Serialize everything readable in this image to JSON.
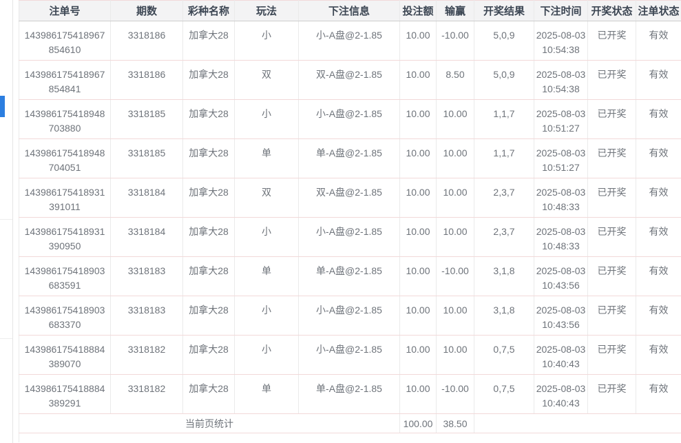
{
  "accent": {
    "scrollbar_thumb_color": "#2c7ee0"
  },
  "table": {
    "columns": [
      {
        "key": "bet_id",
        "label": "注单号"
      },
      {
        "key": "period",
        "label": "期数"
      },
      {
        "key": "lottery",
        "label": "彩种名称"
      },
      {
        "key": "play",
        "label": "玩法"
      },
      {
        "key": "bet_info",
        "label": "下注信息"
      },
      {
        "key": "amount",
        "label": "投注额"
      },
      {
        "key": "win_loss",
        "label": "输赢"
      },
      {
        "key": "result",
        "label": "开奖结果"
      },
      {
        "key": "bet_time",
        "label": "下注时间"
      },
      {
        "key": "draw_status",
        "label": "开奖状态"
      },
      {
        "key": "bet_status",
        "label": "注单状态"
      }
    ],
    "rows": [
      [
        "143986175418967854610",
        "3318186",
        "加拿大28",
        "小",
        "小-A盘@2-1.85",
        "10.00",
        "-10.00",
        "5,0,9",
        "2025-08-03 10:54:38",
        "已开奖",
        "有效"
      ],
      [
        "143986175418967854841",
        "3318186",
        "加拿大28",
        "双",
        "双-A盘@2-1.85",
        "10.00",
        "8.50",
        "5,0,9",
        "2025-08-03 10:54:38",
        "已开奖",
        "有效"
      ],
      [
        "143986175418948703880",
        "3318185",
        "加拿大28",
        "小",
        "小-A盘@2-1.85",
        "10.00",
        "10.00",
        "1,1,7",
        "2025-08-03 10:51:27",
        "已开奖",
        "有效"
      ],
      [
        "143986175418948704051",
        "3318185",
        "加拿大28",
        "单",
        "单-A盘@2-1.85",
        "10.00",
        "10.00",
        "1,1,7",
        "2025-08-03 10:51:27",
        "已开奖",
        "有效"
      ],
      [
        "143986175418931391011",
        "3318184",
        "加拿大28",
        "双",
        "双-A盘@2-1.85",
        "10.00",
        "10.00",
        "2,3,7",
        "2025-08-03 10:48:33",
        "已开奖",
        "有效"
      ],
      [
        "143986175418931390950",
        "3318184",
        "加拿大28",
        "小",
        "小-A盘@2-1.85",
        "10.00",
        "10.00",
        "2,3,7",
        "2025-08-03 10:48:33",
        "已开奖",
        "有效"
      ],
      [
        "143986175418903683591",
        "3318183",
        "加拿大28",
        "单",
        "单-A盘@2-1.85",
        "10.00",
        "-10.00",
        "3,1,8",
        "2025-08-03 10:43:56",
        "已开奖",
        "有效"
      ],
      [
        "143986175418903683370",
        "3318183",
        "加拿大28",
        "小",
        "小-A盘@2-1.85",
        "10.00",
        "10.00",
        "3,1,8",
        "2025-08-03 10:43:56",
        "已开奖",
        "有效"
      ],
      [
        "143986175418884389070",
        "3318182",
        "加拿大28",
        "小",
        "小-A盘@2-1.85",
        "10.00",
        "10.00",
        "0,7,5",
        "2025-08-03 10:40:43",
        "已开奖",
        "有效"
      ],
      [
        "143986175418884389291",
        "3318182",
        "加拿大28",
        "单",
        "单-A盘@2-1.85",
        "10.00",
        "-10.00",
        "0,7,5",
        "2025-08-03 10:40:43",
        "已开奖",
        "有效"
      ]
    ],
    "summary": {
      "label": "当前页统计",
      "amount_total": "100.00",
      "win_loss_total": "38.50"
    }
  }
}
